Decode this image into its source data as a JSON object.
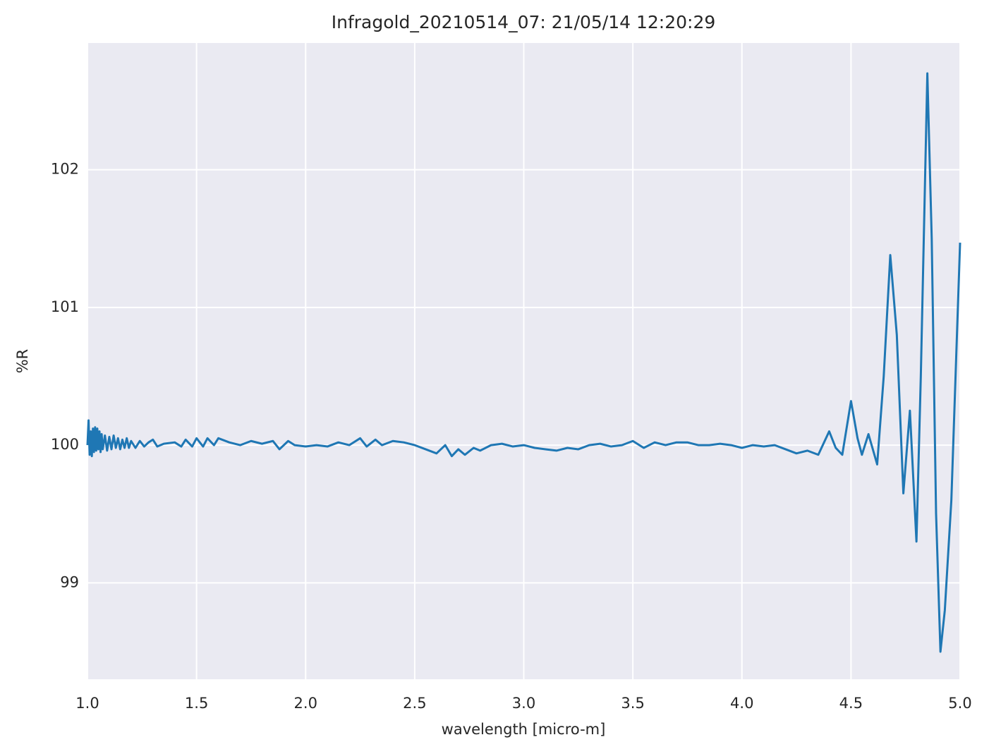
{
  "chart_data": {
    "type": "line",
    "title": "Infragold_20210514_07:  21/05/14 12:20:29",
    "xlabel": "wavelength [micro-m]",
    "ylabel": "%R",
    "x": [
      1.0,
      1.005,
      1.01,
      1.015,
      1.02,
      1.025,
      1.03,
      1.035,
      1.04,
      1.045,
      1.05,
      1.055,
      1.06,
      1.065,
      1.07,
      1.08,
      1.09,
      1.1,
      1.11,
      1.12,
      1.13,
      1.14,
      1.15,
      1.16,
      1.17,
      1.18,
      1.19,
      1.2,
      1.22,
      1.24,
      1.26,
      1.28,
      1.3,
      1.32,
      1.35,
      1.4,
      1.43,
      1.45,
      1.48,
      1.5,
      1.53,
      1.55,
      1.58,
      1.6,
      1.65,
      1.7,
      1.75,
      1.8,
      1.85,
      1.88,
      1.92,
      1.95,
      2.0,
      2.05,
      2.1,
      2.15,
      2.2,
      2.25,
      2.28,
      2.32,
      2.35,
      2.4,
      2.45,
      2.5,
      2.55,
      2.6,
      2.64,
      2.67,
      2.7,
      2.73,
      2.77,
      2.8,
      2.85,
      2.9,
      2.95,
      3.0,
      3.05,
      3.1,
      3.15,
      3.2,
      3.25,
      3.3,
      3.35,
      3.4,
      3.45,
      3.5,
      3.55,
      3.6,
      3.65,
      3.7,
      3.75,
      3.8,
      3.85,
      3.9,
      3.95,
      4.0,
      4.05,
      4.1,
      4.15,
      4.2,
      4.25,
      4.3,
      4.35,
      4.4,
      4.43,
      4.46,
      4.5,
      4.53,
      4.55,
      4.58,
      4.62,
      4.65,
      4.68,
      4.71,
      4.74,
      4.77,
      4.8,
      4.82,
      4.85,
      4.87,
      4.89,
      4.91,
      4.93,
      4.96,
      5.0
    ],
    "series": [
      {
        "color": "#1f77b4",
        "values": [
          100.0,
          100.18,
          99.93,
          100.1,
          99.92,
          100.12,
          99.95,
          100.13,
          99.96,
          100.12,
          99.97,
          100.1,
          99.95,
          100.08,
          99.97,
          100.07,
          99.96,
          100.06,
          99.97,
          100.07,
          99.98,
          100.05,
          99.97,
          100.04,
          99.98,
          100.05,
          99.98,
          100.03,
          99.98,
          100.03,
          99.99,
          100.02,
          100.04,
          99.99,
          100.01,
          100.02,
          99.99,
          100.04,
          99.99,
          100.05,
          99.99,
          100.05,
          100.0,
          100.05,
          100.02,
          100.0,
          100.03,
          100.01,
          100.03,
          99.97,
          100.03,
          100.0,
          99.99,
          100.0,
          99.99,
          100.02,
          100.0,
          100.05,
          99.99,
          100.04,
          100.0,
          100.03,
          100.02,
          100.0,
          99.97,
          99.94,
          100.0,
          99.92,
          99.97,
          99.93,
          99.98,
          99.96,
          100.0,
          100.01,
          99.99,
          100.0,
          99.98,
          99.97,
          99.96,
          99.98,
          99.97,
          100.0,
          100.01,
          99.99,
          100.0,
          100.03,
          99.98,
          100.02,
          100.0,
          100.02,
          100.02,
          100.0,
          100.0,
          100.01,
          100.0,
          99.98,
          100.0,
          99.99,
          100.0,
          99.97,
          99.94,
          99.96,
          99.93,
          100.1,
          99.98,
          99.93,
          100.32,
          100.05,
          99.93,
          100.08,
          99.86,
          100.5,
          101.38,
          100.8,
          99.65,
          100.25,
          99.3,
          100.5,
          102.7,
          101.5,
          99.5,
          98.5,
          98.8,
          99.6,
          101.47
        ]
      }
    ],
    "xlim": [
      1.0,
      5.0
    ],
    "xticks": [
      {
        "value": 1,
        "label": "1.0"
      },
      1.5,
      {
        "value": 2,
        "label": "2.0"
      },
      2.5,
      {
        "value": 3,
        "label": "3.0"
      },
      3.5,
      {
        "value": 4,
        "label": "4.0"
      },
      4.5,
      {
        "value": 5,
        "label": "5.0"
      }
    ],
    "ylim": [
      98.3,
      102.92
    ],
    "yticks": [
      99,
      100,
      101,
      102
    ],
    "grid": true
  }
}
